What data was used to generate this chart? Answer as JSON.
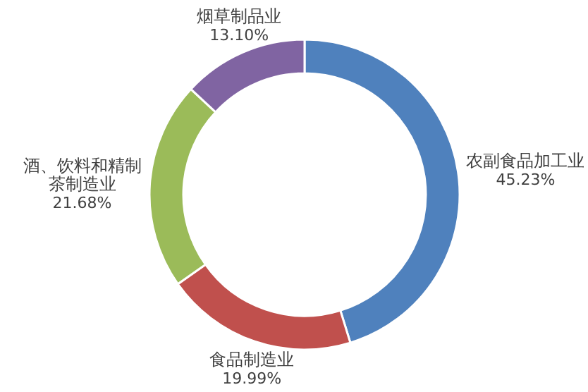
{
  "chart_data": {
    "type": "donut",
    "categories": [
      "农副食品加工业",
      "食品制造业",
      "酒、饮料和精制茶制造业",
      "烟草制品业"
    ],
    "values": [
      45.23,
      19.99,
      21.68,
      13.1
    ],
    "colors": [
      "#4f81bd",
      "#c0504d",
      "#9bbb59",
      "#8064a2"
    ],
    "value_labels": [
      "45.23%",
      "19.99%",
      "21.68%",
      "13.10%"
    ]
  }
}
